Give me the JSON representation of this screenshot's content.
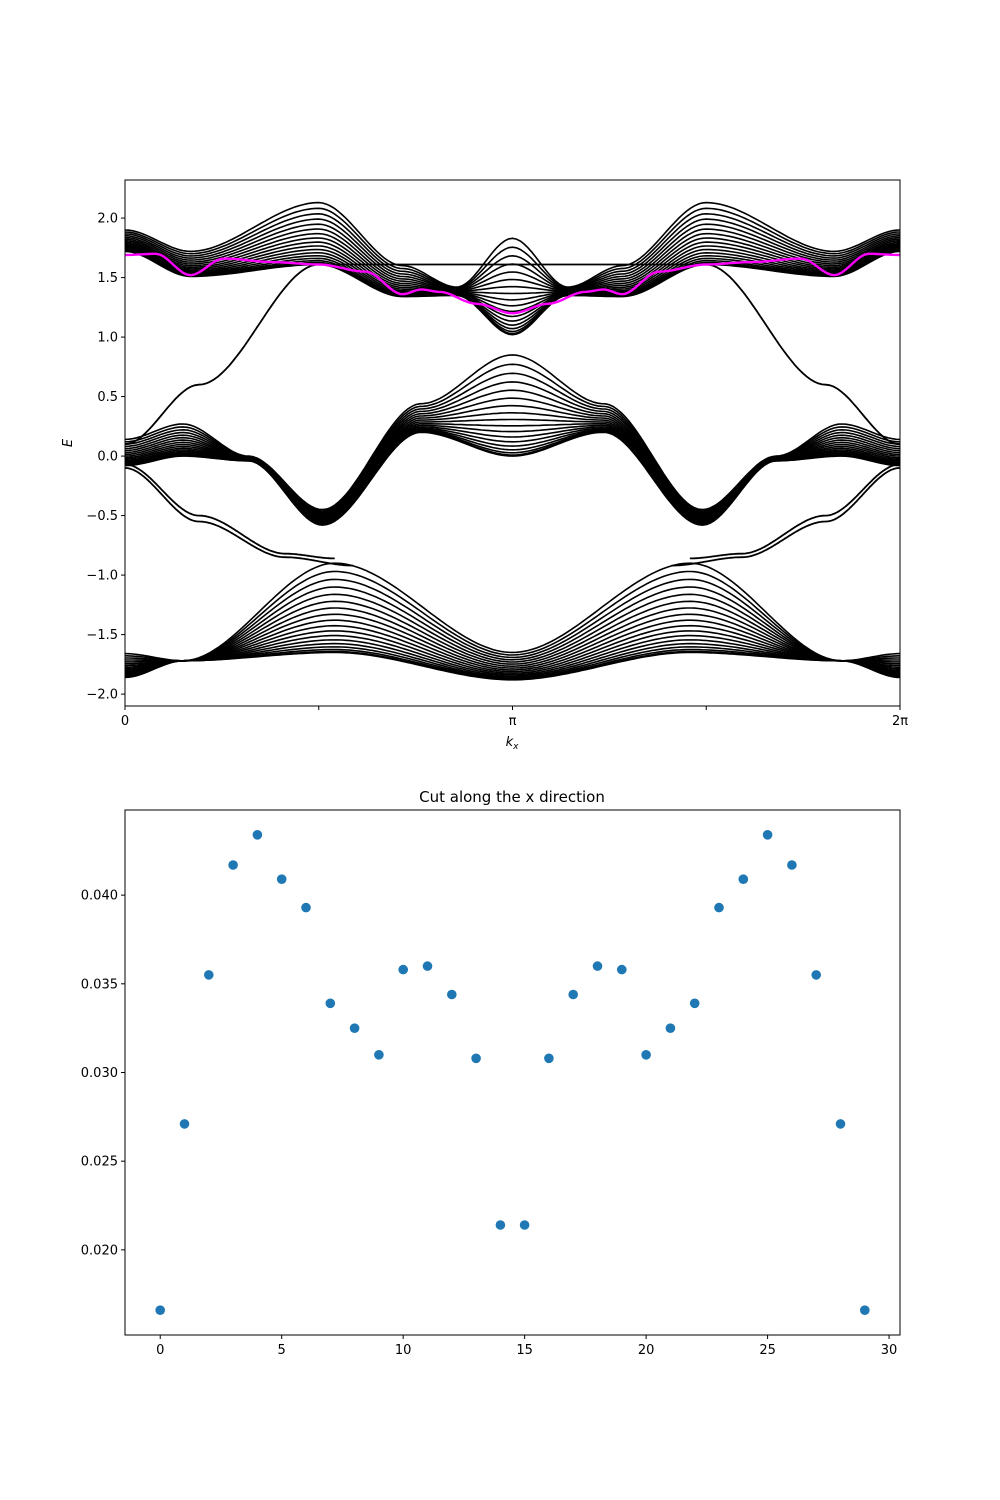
{
  "chart_data": [
    {
      "type": "line",
      "title": "",
      "xlabel_main": "k",
      "xlabel_sub": "x",
      "ylabel": "E",
      "xlim": [
        0,
        6.283185307
      ],
      "ylim": [
        -2.1,
        2.32
      ],
      "grid": false,
      "legend": "none",
      "line_color": "#000000",
      "highlight_color": "#ff00ff",
      "x_tick_labels": [
        "0",
        "",
        "π",
        "",
        "2π"
      ],
      "y_ticks": [
        -2.0,
        -1.5,
        -1.0,
        -0.5,
        0.0,
        0.5,
        1.0,
        1.5,
        2.0
      ],
      "y_tick_labels": [
        "−2.0",
        "−1.5",
        "−1.0",
        "−0.5",
        "0.0",
        "0.5",
        "1.0",
        "1.5",
        "2.0"
      ],
      "bands": {
        "upper": {
          "x": [
            0,
            0.53,
            1.57,
            2.25,
            2.69,
            3.14,
            3.59,
            4.03,
            4.71,
            5.75,
            6.28
          ],
          "min": [
            1.72,
            1.51,
            1.61,
            1.34,
            1.35,
            1.02,
            1.35,
            1.34,
            1.61,
            1.51,
            1.72
          ],
          "max": [
            1.9,
            1.72,
            2.13,
            1.6,
            1.42,
            1.83,
            1.42,
            1.6,
            2.13,
            1.72,
            1.9
          ]
        },
        "middle": {
          "x": [
            0,
            0.47,
            1.0,
            1.6,
            2.4,
            3.14,
            3.88,
            4.68,
            5.28,
            5.81,
            6.28
          ],
          "min": [
            -0.08,
            0.0,
            -0.04,
            -0.58,
            0.2,
            0.0,
            0.2,
            -0.58,
            -0.04,
            0.0,
            -0.08
          ],
          "max": [
            0.14,
            0.27,
            0.0,
            -0.45,
            0.44,
            0.85,
            0.44,
            -0.45,
            0.0,
            0.27,
            0.14
          ]
        },
        "lower": {
          "x": [
            0,
            0.47,
            1.7,
            3.14,
            4.58,
            5.81,
            6.28
          ],
          "min": [
            -1.86,
            -1.72,
            -1.65,
            -1.88,
            -1.65,
            -1.72,
            -1.86
          ],
          "max": [
            -1.66,
            -1.72,
            -0.9,
            -1.65,
            -0.9,
            -1.72,
            -1.66
          ]
        }
      },
      "edge_states": [
        {
          "x": [
            0,
            0.6,
            1.57,
            1.8,
            3.14,
            4.48,
            4.71,
            5.68,
            6.28
          ],
          "y": [
            0.1,
            0.6,
            1.61,
            1.61,
            1.61,
            1.61,
            1.61,
            0.6,
            0.1
          ]
        },
        {
          "x": [
            0,
            0.6,
            1.3,
            1.7
          ],
          "y": [
            -0.07,
            -0.5,
            -0.82,
            -0.86
          ]
        },
        {
          "x": [
            0,
            0.6,
            1.3,
            1.85
          ],
          "y": [
            -0.1,
            -0.55,
            -0.85,
            -0.92
          ]
        },
        {
          "x": [
            4.58,
            5.0,
            5.68,
            6.28
          ],
          "y": [
            -0.86,
            -0.82,
            -0.5,
            -0.07
          ]
        },
        {
          "x": [
            4.43,
            5.0,
            5.68,
            6.28
          ],
          "y": [
            -0.92,
            -0.85,
            -0.55,
            -0.1
          ]
        }
      ],
      "highlight_band": {
        "x": [
          0,
          0.25,
          0.53,
          0.8,
          1.2,
          1.57,
          1.95,
          2.25,
          2.4,
          2.55,
          2.85,
          3.14,
          3.43,
          3.73,
          3.88,
          4.03,
          4.33,
          4.71,
          5.08,
          5.48,
          5.75,
          6.03,
          6.28
        ],
        "y": [
          1.69,
          1.7,
          1.52,
          1.66,
          1.63,
          1.61,
          1.55,
          1.36,
          1.4,
          1.38,
          1.28,
          1.2,
          1.28,
          1.38,
          1.4,
          1.36,
          1.55,
          1.61,
          1.63,
          1.66,
          1.52,
          1.7,
          1.69
        ]
      }
    },
    {
      "type": "scatter",
      "title": "Cut along the x direction",
      "xlabel": "",
      "ylabel": "",
      "xlim": [
        -1.45,
        30.45
      ],
      "ylim": [
        0.0152,
        0.0448
      ],
      "grid": false,
      "legend": "none",
      "marker_color": "#1f77b4",
      "x_ticks": [
        0,
        5,
        10,
        15,
        20,
        25,
        30
      ],
      "x_tick_labels": [
        "0",
        "5",
        "10",
        "15",
        "20",
        "25",
        "30"
      ],
      "y_ticks": [
        0.02,
        0.025,
        0.03,
        0.035,
        0.04
      ],
      "y_tick_labels": [
        "0.020",
        "0.025",
        "0.030",
        "0.035",
        "0.040"
      ],
      "x": [
        0,
        1,
        2,
        3,
        4,
        5,
        6,
        7,
        8,
        9,
        10,
        11,
        12,
        13,
        14,
        15,
        16,
        17,
        18,
        19,
        20,
        21,
        22,
        23,
        24,
        25,
        26,
        27,
        28,
        29
      ],
      "y": [
        0.0166,
        0.0271,
        0.0355,
        0.0417,
        0.0434,
        0.0409,
        0.0393,
        0.0339,
        0.0325,
        0.031,
        0.0358,
        0.036,
        0.0344,
        0.0308,
        0.0214,
        0.0214,
        0.0308,
        0.0344,
        0.036,
        0.0358,
        0.031,
        0.0325,
        0.0339,
        0.0393,
        0.0409,
        0.0434,
        0.0417,
        0.0355,
        0.0271,
        0.0166
      ]
    }
  ]
}
